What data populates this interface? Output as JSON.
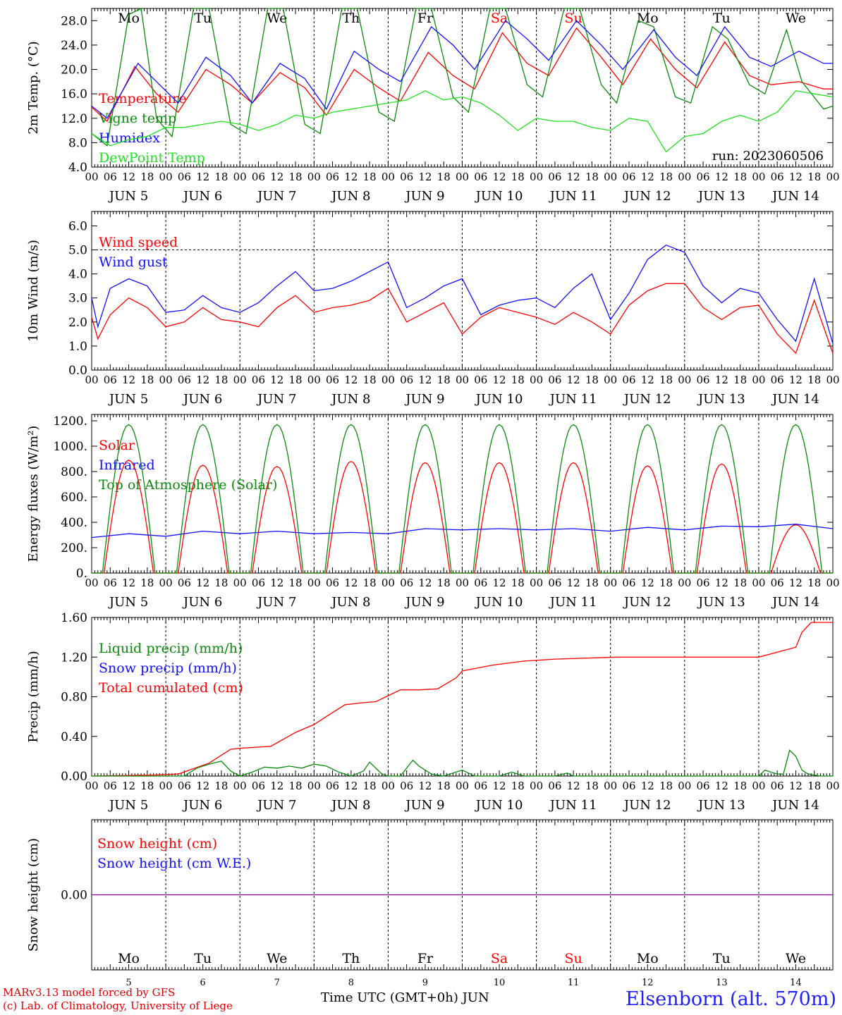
{
  "colors": {
    "red": "#ff0000",
    "dark_green": "#0a8a0a",
    "blue": "#1010ff",
    "light_green": "#20e020",
    "weekend_day": "#ff0000",
    "frame": "#000000",
    "snow_line": "#9000a0"
  },
  "run_label": "run: 2023060506",
  "footer": {
    "model": "MARv3.13 model forced by GFS",
    "lab": "(c) Lab. of Climatology, University of Liege",
    "x_title": "Time UTC (GMT+0h) JUN",
    "station": "Elsenborn (alt. 570m)"
  },
  "days": [
    "Mo",
    "Tu",
    "We",
    "Th",
    "Fr",
    "Sa",
    "Su",
    "Mo",
    "Tu",
    "We"
  ],
  "weekend_days": [
    5,
    6
  ],
  "hour_ticks": [
    "00",
    "06",
    "12",
    "18"
  ],
  "final_hour_tick": "00",
  "dates": [
    "JUN  5",
    "JUN  6",
    "JUN  7",
    "JUN  8",
    "JUN  9",
    "JUN 10",
    "JUN 11",
    "JUN 12",
    "JUN 13",
    "JUN 14"
  ],
  "bottom_dates": [
    "5",
    "6",
    "7",
    "8",
    "9",
    "10",
    "11",
    "12",
    "13",
    "14"
  ],
  "chart_data": [
    {
      "type": "line",
      "ylabel": "2m Temp. (°C)",
      "ylim": [
        4,
        30
      ],
      "yticks": [
        "4.0",
        "8.0",
        "12.0",
        "16.0",
        "20.0",
        "24.0",
        "28.0"
      ],
      "x_unit": "hours from 2023-06-05 00 UTC",
      "legend": [
        "Temperature",
        "Vigne temp",
        "Humidex",
        "DewPoint Temp"
      ],
      "series": [
        {
          "name": "Temperature",
          "color": "red",
          "x": [
            0,
            5,
            14,
            21,
            28,
            37,
            45,
            52,
            61,
            69,
            76,
            85,
            93,
            100,
            109,
            117,
            124,
            133,
            141,
            148,
            157,
            165,
            172,
            181,
            189,
            196,
            205,
            213,
            220,
            229,
            237,
            240
          ],
          "y": [
            13.8,
            11.5,
            20.5,
            16.0,
            13.0,
            20.0,
            17.5,
            14.5,
            19.5,
            17.0,
            12.5,
            20.0,
            17.0,
            14.8,
            22.8,
            19.0,
            16.8,
            26.0,
            21.0,
            19.0,
            26.8,
            22.0,
            17.5,
            25.0,
            20.0,
            17.0,
            24.5,
            19.0,
            17.5,
            18.0,
            16.8,
            16.8
          ]
        },
        {
          "name": "Vigne temp",
          "color": "dark_green",
          "x": [
            0,
            5,
            12,
            16,
            21,
            26,
            33,
            38,
            45,
            50,
            57,
            62,
            69,
            74,
            81,
            86,
            93,
            98,
            105,
            110,
            117,
            122,
            129,
            134,
            141,
            146,
            153,
            158,
            165,
            170,
            177,
            182,
            189,
            194,
            201,
            206,
            213,
            218,
            225,
            230,
            237,
            240
          ],
          "y": [
            9.5,
            7.5,
            29.0,
            30.0,
            12.0,
            9.0,
            30.0,
            30.0,
            11.0,
            9.5,
            30.0,
            30.0,
            11.0,
            9.5,
            30.0,
            30.0,
            13.0,
            11.5,
            30.0,
            30.0,
            15.5,
            13.0,
            30.0,
            30.0,
            17.5,
            15.5,
            30.0,
            30.0,
            17.5,
            14.5,
            28.0,
            27.0,
            15.5,
            14.5,
            27.0,
            25.0,
            17.5,
            16.0,
            26.5,
            18.0,
            13.5,
            14.0
          ]
        },
        {
          "name": "Humidex",
          "color": "blue",
          "x": [
            0,
            5,
            15,
            22,
            28,
            37,
            45,
            52,
            61,
            69,
            76,
            85,
            93,
            100,
            110,
            117,
            124,
            134,
            141,
            148,
            157,
            165,
            172,
            182,
            189,
            196,
            205,
            213,
            220,
            229,
            237,
            240
          ],
          "y": [
            14.0,
            12.0,
            21.0,
            17.5,
            14.5,
            22.0,
            19.0,
            14.5,
            21.0,
            18.5,
            13.5,
            23.0,
            20.0,
            18.0,
            27.0,
            24.0,
            20.0,
            28.0,
            25.0,
            21.5,
            28.0,
            24.0,
            20.0,
            26.5,
            22.0,
            19.0,
            27.0,
            22.0,
            20.5,
            23.0,
            21.0,
            21.0
          ]
        },
        {
          "name": "DewPoint Temp",
          "color": "light_green",
          "x": [
            0,
            6,
            12,
            18,
            24,
            30,
            36,
            42,
            48,
            54,
            60,
            66,
            72,
            78,
            84,
            90,
            96,
            102,
            108,
            114,
            120,
            126,
            132,
            138,
            144,
            150,
            156,
            162,
            168,
            174,
            180,
            186,
            192,
            198,
            204,
            210,
            216,
            222,
            228,
            234,
            240
          ],
          "y": [
            9.5,
            7.5,
            8.5,
            9.0,
            10.5,
            10.5,
            11.0,
            11.5,
            11.0,
            10.0,
            11.0,
            12.5,
            12.0,
            13.0,
            13.5,
            14.0,
            14.5,
            15.0,
            16.5,
            15.0,
            15.5,
            14.5,
            12.5,
            10.0,
            12.0,
            11.5,
            11.5,
            10.5,
            10.0,
            12.0,
            11.5,
            6.5,
            9.0,
            9.5,
            11.5,
            12.5,
            11.5,
            13.0,
            16.5,
            16.0,
            15.5
          ]
        }
      ]
    },
    {
      "type": "line",
      "ylabel": "10m Wind (m/s)",
      "ylim": [
        0,
        6.6
      ],
      "yticks": [
        "0.0",
        "1.0",
        "2.0",
        "3.0",
        "4.0",
        "5.0",
        "6.0"
      ],
      "reference_line": 5.0,
      "x_unit": "hours from 2023-06-05 00 UTC",
      "legend": [
        "Wind speed",
        "Wind gust"
      ],
      "series": [
        {
          "name": "Wind speed",
          "color": "red",
          "x": [
            0,
            2,
            6,
            12,
            18,
            24,
            30,
            36,
            42,
            48,
            54,
            60,
            66,
            72,
            78,
            84,
            90,
            96,
            102,
            108,
            114,
            120,
            126,
            132,
            138,
            144,
            150,
            156,
            162,
            168,
            174,
            180,
            186,
            192,
            198,
            204,
            210,
            216,
            222,
            228,
            234,
            240
          ],
          "y": [
            2.2,
            1.3,
            2.3,
            3.0,
            2.6,
            1.8,
            2.0,
            2.6,
            2.1,
            2.0,
            1.8,
            2.6,
            3.1,
            2.4,
            2.6,
            2.7,
            2.9,
            3.4,
            2.0,
            2.4,
            2.8,
            1.5,
            2.2,
            2.6,
            2.4,
            2.2,
            1.9,
            2.4,
            2.0,
            1.5,
            2.7,
            3.3,
            3.6,
            3.6,
            2.6,
            2.1,
            2.6,
            2.7,
            1.5,
            0.7,
            2.9,
            0.7
          ]
        },
        {
          "name": "Wind gust",
          "color": "blue",
          "x": [
            0,
            2,
            6,
            12,
            18,
            24,
            30,
            36,
            42,
            48,
            54,
            60,
            66,
            72,
            78,
            84,
            90,
            96,
            102,
            108,
            114,
            120,
            126,
            132,
            138,
            144,
            150,
            156,
            162,
            168,
            174,
            180,
            186,
            192,
            198,
            204,
            210,
            216,
            222,
            228,
            234,
            240
          ],
          "y": [
            3.0,
            1.8,
            3.4,
            3.8,
            3.5,
            2.4,
            2.5,
            3.1,
            2.6,
            2.4,
            2.8,
            3.5,
            4.1,
            3.3,
            3.4,
            3.7,
            4.1,
            4.5,
            2.6,
            3.0,
            3.5,
            3.8,
            2.3,
            2.7,
            2.9,
            3.0,
            2.6,
            3.4,
            4.0,
            2.1,
            3.2,
            4.6,
            5.2,
            4.9,
            3.5,
            2.8,
            3.4,
            3.2,
            2.1,
            1.2,
            3.8,
            1.1
          ]
        }
      ]
    },
    {
      "type": "line",
      "ylabel": "Energy fluxes (W/m²)",
      "ylim": [
        0,
        1250
      ],
      "yticks": [
        "0.",
        "200.",
        "400.",
        "600.",
        "800.",
        "1000.",
        "1200."
      ],
      "x_unit": "hours from 2023-06-05 00 UTC",
      "legend": [
        "Solar",
        "Infrared",
        "Top of Atmosphere (Solar)"
      ],
      "series": [
        {
          "name": "Solar",
          "color": "red",
          "daily_peak_hour": 12,
          "daily_start_hour": 4,
          "daily_end_hour": 20,
          "daily_peaks": [
            890,
            850,
            840,
            880,
            870,
            870,
            870,
            845,
            860,
            380
          ]
        },
        {
          "name": "Infrared",
          "color": "blue",
          "x": [
            0,
            12,
            24,
            36,
            48,
            60,
            72,
            84,
            96,
            108,
            120,
            132,
            144,
            156,
            168,
            180,
            192,
            204,
            216,
            228,
            240
          ],
          "y": [
            280,
            310,
            290,
            330,
            310,
            330,
            310,
            320,
            310,
            350,
            340,
            350,
            340,
            350,
            330,
            360,
            340,
            370,
            365,
            385,
            350
          ]
        },
        {
          "name": "Top of Atmosphere (Solar)",
          "color": "dark_green",
          "daily_peak_hour": 12,
          "daily_start_hour": 3.5,
          "daily_end_hour": 20.5,
          "daily_peaks": [
            1170,
            1170,
            1170,
            1170,
            1170,
            1170,
            1170,
            1170,
            1170,
            1170
          ]
        }
      ]
    },
    {
      "type": "line",
      "ylabel": "Precip (mm/h)",
      "ylim": [
        0,
        1.6
      ],
      "yticks": [
        "0.00",
        "0.40",
        "0.80",
        "1.20",
        "1.60"
      ],
      "x_unit": "hours from 2023-06-05 00 UTC",
      "legend": [
        "Liquid precip (mm/h)",
        "Snow precip (mm/h)",
        "Total cumulated (cm)"
      ],
      "series": [
        {
          "name": "Total cumulated (cm)",
          "color": "red",
          "x": [
            0,
            20,
            28,
            38,
            45,
            48,
            58,
            66,
            72,
            76,
            82,
            88,
            92,
            100,
            106,
            112,
            118,
            120,
            130,
            140,
            150,
            160,
            170,
            180,
            190,
            200,
            210,
            216,
            222,
            228,
            230,
            233,
            240
          ],
          "y": [
            0,
            0.01,
            0.02,
            0.13,
            0.27,
            0.28,
            0.3,
            0.44,
            0.52,
            0.6,
            0.72,
            0.74,
            0.75,
            0.87,
            0.87,
            0.88,
            0.99,
            1.06,
            1.12,
            1.16,
            1.18,
            1.19,
            1.2,
            1.2,
            1.2,
            1.2,
            1.2,
            1.2,
            1.25,
            1.3,
            1.45,
            1.55,
            1.55
          ]
        },
        {
          "name": "Liquid precip (mm/h)",
          "color": "dark_green",
          "x": [
            0,
            30,
            34,
            38,
            42,
            45,
            48,
            52,
            56,
            60,
            64,
            68,
            72,
            76,
            80,
            84,
            88,
            90,
            94,
            96,
            100,
            104,
            106,
            110,
            114,
            118,
            120,
            124,
            128,
            132,
            136,
            140,
            144,
            150,
            154,
            156,
            160,
            168,
            180,
            192,
            204,
            216,
            218,
            222,
            224,
            226,
            228,
            230,
            232,
            236,
            240
          ],
          "y": [
            0,
            0,
            0.08,
            0.12,
            0.15,
            0.05,
            0,
            0.04,
            0.09,
            0.08,
            0.1,
            0.08,
            0.12,
            0.1,
            0.04,
            0,
            0.05,
            0.14,
            0.02,
            0,
            0,
            0.16,
            0.1,
            0.02,
            0,
            0.04,
            0.06,
            0,
            0,
            0,
            0.04,
            0,
            0,
            0,
            0.03,
            0,
            0,
            0,
            0,
            0,
            0,
            0,
            0.06,
            0.02,
            0.02,
            0.26,
            0.2,
            0.06,
            0.02,
            0,
            0
          ]
        }
      ]
    },
    {
      "type": "line",
      "ylabel": "Snow height (cm)",
      "ylim": [
        -1,
        1
      ],
      "yticks": [
        "0.00"
      ],
      "x_unit": "hours from 2023-06-05 00 UTC",
      "legend": [
        "Snow height (cm)",
        "Snow height (cm W.E.)"
      ],
      "series": [
        {
          "name": "Snow height (cm)",
          "color": "snow_line",
          "x": [
            0,
            240
          ],
          "y": [
            0,
            0
          ]
        }
      ]
    }
  ]
}
